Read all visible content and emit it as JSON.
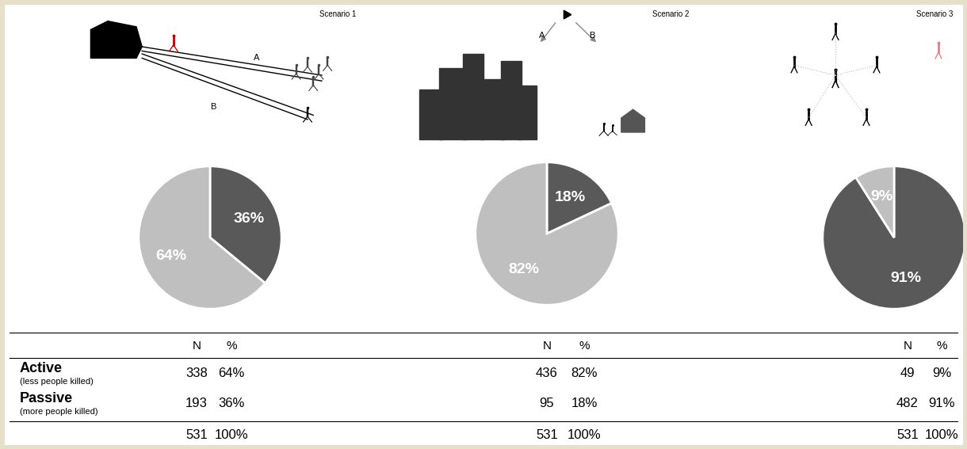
{
  "chart_data": [
    {
      "type": "pie",
      "title": "Scenario 1",
      "annotations": [
        "A",
        "B"
      ],
      "values": [
        36,
        64
      ],
      "value_labels": [
        "36%",
        "64%"
      ],
      "colors": [
        "#595959",
        "#bfbfbf"
      ],
      "data_labels": true
    },
    {
      "type": "pie",
      "title": "Scenario 2",
      "annotations": [
        "A",
        "B"
      ],
      "values": [
        18,
        82
      ],
      "value_labels": [
        "18%",
        "82%"
      ],
      "colors": [
        "#595959",
        "#bfbfbf"
      ],
      "data_labels": true
    },
    {
      "type": "pie",
      "title": "Scenario 3",
      "values": [
        91,
        9
      ],
      "value_labels": [
        "91%",
        "9%"
      ],
      "colors": [
        "#595959",
        "#bfbfbf"
      ],
      "data_labels": true
    }
  ],
  "table": {
    "header": [
      [
        "N",
        "%"
      ],
      [
        "N",
        "%"
      ],
      [
        "N",
        "%"
      ]
    ],
    "rows": [
      {
        "label": "Active",
        "note": "(less people killed)",
        "cells": [
          [
            338,
            "64%"
          ],
          [
            436,
            "82%"
          ],
          [
            49,
            "9%"
          ]
        ]
      },
      {
        "label": "Passive",
        "note": "(more people killed)",
        "cells": [
          [
            193,
            "36%"
          ],
          [
            95,
            "18%"
          ],
          [
            482,
            "91%"
          ]
        ]
      },
      {
        "cells": [
          [
            531,
            "100%"
          ],
          [
            531,
            "100%"
          ],
          [
            531,
            "100%"
          ]
        ]
      }
    ]
  }
}
